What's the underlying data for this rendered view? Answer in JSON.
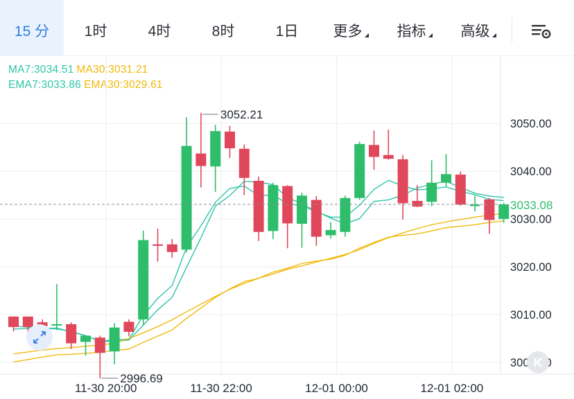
{
  "tabs": [
    {
      "label": "15 分",
      "active": true
    },
    {
      "label": "1时"
    },
    {
      "label": "4时"
    },
    {
      "label": "8时"
    },
    {
      "label": "1日"
    },
    {
      "label": "更多",
      "dropdown": true
    },
    {
      "label": "指标",
      "dropdown": true
    },
    {
      "label": "高级",
      "dropdown": true
    }
  ],
  "settings_icon": "chart-settings-icon",
  "indicators": {
    "ma7": {
      "label": "MA7:3034.51",
      "color": "#2ec4a8"
    },
    "ma30": {
      "label": "MA30:3031.21",
      "color": "#f0b90b"
    },
    "ema7": {
      "label": "EMA7:3033.86",
      "color": "#2ec4a8"
    },
    "ema30": {
      "label": "EMA30:3029.61",
      "color": "#f0b90b"
    }
  },
  "colors": {
    "up": "#2ebd6b",
    "down": "#e0475b",
    "grid": "#eceef1",
    "axis_text": "#222831"
  },
  "chart_data": {
    "type": "candlestick",
    "y_axis": {
      "min": 2993,
      "max": 3063,
      "ticks": [
        "3000.00",
        "3010.00",
        "3020.00",
        "3030.00",
        "3040.00",
        "3050.00"
      ]
    },
    "x_axis": {
      "ticks": [
        {
          "label": "11-30 20:00",
          "index": 6.5
        },
        {
          "label": "11-30 22:00",
          "index": 14.5
        },
        {
          "label": "12-01 00:00",
          "index": 22.5
        },
        {
          "label": "12-01 02:00",
          "index": 30.5
        }
      ]
    },
    "current_price": "3033.08",
    "high_label": "3052.21",
    "low_label": "2996.69",
    "candles": [
      {
        "o": 3009.6,
        "h": 3009.6,
        "c": 3007.4,
        "l": 3006.5
      },
      {
        "o": 3009.6,
        "h": 3009.6,
        "c": 3007.4,
        "l": 3006.5
      },
      {
        "o": 3008.4,
        "h": 3009.0,
        "c": 3007.6,
        "l": 3006.2
      },
      {
        "o": 3008.0,
        "h": 3016.4,
        "c": 3008.0,
        "l": 3006.8
      },
      {
        "o": 3008.0,
        "h": 3008.4,
        "c": 3004.0,
        "l": 3002.8
      },
      {
        "o": 3004.3,
        "h": 3005.5,
        "c": 3005.6,
        "l": 3001.4
      },
      {
        "o": 3005.2,
        "h": 3005.6,
        "c": 3002.0,
        "l": 2996.69
      },
      {
        "o": 3002.3,
        "h": 3008.2,
        "c": 3007.3,
        "l": 2999.6
      },
      {
        "o": 3008.5,
        "h": 3009.0,
        "c": 3006.4,
        "l": 3005.5
      },
      {
        "o": 3009.0,
        "h": 3027.6,
        "c": 3025.6,
        "l": 3007.8
      },
      {
        "o": 3024.7,
        "h": 3028.0,
        "c": 3024.4,
        "l": 3021.1
      },
      {
        "o": 3024.7,
        "h": 3025.8,
        "c": 3023.1,
        "l": 3021.9
      },
      {
        "o": 3023.6,
        "h": 3051.3,
        "c": 3045.3,
        "l": 3023.0
      },
      {
        "o": 3043.7,
        "h": 3052.21,
        "c": 3041.1,
        "l": 3036.6
      },
      {
        "o": 3041.0,
        "h": 3049.7,
        "c": 3048.4,
        "l": 3035.7
      },
      {
        "o": 3048.3,
        "h": 3049.5,
        "c": 3044.8,
        "l": 3042.8
      },
      {
        "o": 3044.7,
        "h": 3045.6,
        "c": 3038.6,
        "l": 3035.0
      },
      {
        "o": 3038.0,
        "h": 3038.9,
        "c": 3027.3,
        "l": 3025.4
      },
      {
        "o": 3027.5,
        "h": 3037.6,
        "c": 3037.1,
        "l": 3025.8
      },
      {
        "o": 3036.9,
        "h": 3037.1,
        "c": 3029.1,
        "l": 3023.9
      },
      {
        "o": 3029.0,
        "h": 3035.5,
        "c": 3034.9,
        "l": 3024.0
      },
      {
        "o": 3034.0,
        "h": 3034.8,
        "c": 3026.3,
        "l": 3024.4
      },
      {
        "o": 3026.6,
        "h": 3029.4,
        "c": 3027.7,
        "l": 3025.9
      },
      {
        "o": 3027.3,
        "h": 3034.9,
        "c": 3034.4,
        "l": 3026.3
      },
      {
        "o": 3034.4,
        "h": 3046.2,
        "c": 3045.7,
        "l": 3034.0
      },
      {
        "o": 3045.5,
        "h": 3048.5,
        "c": 3043.0,
        "l": 3040.3
      },
      {
        "o": 3043.4,
        "h": 3048.7,
        "c": 3042.6,
        "l": 3042.4
      },
      {
        "o": 3042.5,
        "h": 3043.4,
        "c": 3033.3,
        "l": 3029.9
      },
      {
        "o": 3033.8,
        "h": 3037.1,
        "c": 3032.6,
        "l": 3032.5
      },
      {
        "o": 3033.6,
        "h": 3042.3,
        "c": 3037.6,
        "l": 3032.7
      },
      {
        "o": 3037.6,
        "h": 3043.6,
        "c": 3039.4,
        "l": 3036.8
      },
      {
        "o": 3039.3,
        "h": 3039.9,
        "c": 3033.0,
        "l": 3032.8
      },
      {
        "o": 3033.0,
        "h": 3034.9,
        "c": 3033.0,
        "l": 3031.6
      },
      {
        "o": 3034.1,
        "h": 3034.4,
        "c": 3029.8,
        "l": 3026.9
      },
      {
        "o": 3030.0,
        "h": 3033.4,
        "c": 3033.08,
        "l": 3029.2
      }
    ],
    "series": [
      {
        "name": "MA7",
        "color": "#2ec4a8",
        "values": [
          3007.6,
          3007.4,
          3007.2,
          3007.0,
          3006.5,
          3005.6,
          3004.4,
          3004.4,
          3004.7,
          3007.8,
          3011.0,
          3013.6,
          3019.9,
          3026.1,
          3032.7,
          3034.9,
          3037.9,
          3037.7,
          3037.2,
          3034.5,
          3033.2,
          3031.6,
          3030.2,
          3029.0,
          3030.1,
          3033.7,
          3034.0,
          3035.0,
          3036.5,
          3037.3,
          3037.9,
          3036.6,
          3035.4,
          3034.8,
          3034.51
        ]
      },
      {
        "name": "EMA7",
        "color": "#2ec4a8",
        "values": [
          3007.0,
          3007.1,
          3007.1,
          3007.2,
          3006.4,
          3005.6,
          3004.5,
          3004.7,
          3004.9,
          3009.8,
          3013.4,
          3016.1,
          3024.1,
          3028.6,
          3033.5,
          3036.4,
          3036.9,
          3034.9,
          3035.0,
          3033.2,
          3032.8,
          3031.5,
          3030.4,
          3030.4,
          3032.9,
          3036.2,
          3038.1,
          3036.9,
          3036.1,
          3036.3,
          3036.7,
          3035.8,
          3035.1,
          3034.1,
          3033.86
        ]
      },
      {
        "name": "MA30",
        "color": "#f0b90b",
        "values": [
          3001.8,
          3002.2,
          3002.6,
          3002.9,
          3003.1,
          3003.4,
          3003.6,
          3004.0,
          3005.0,
          3006.2,
          3007.5,
          3008.9,
          3010.6,
          3012.2,
          3013.8,
          3015.3,
          3016.5,
          3017.6,
          3018.5,
          3019.5,
          3020.2,
          3021.0,
          3021.8,
          3022.6,
          3023.6,
          3024.9,
          3026.1,
          3027.1,
          3028.0,
          3028.8,
          3029.4,
          3029.9,
          3030.4,
          3030.8,
          3031.21
        ]
      },
      {
        "name": "EMA30",
        "color": "#f0b90b",
        "values": [
          3000.1,
          3000.6,
          3001.1,
          3001.6,
          3001.7,
          3001.9,
          3002.1,
          3002.5,
          3002.8,
          3004.2,
          3005.5,
          3006.8,
          3009.2,
          3011.4,
          3013.6,
          3015.4,
          3016.9,
          3017.6,
          3018.9,
          3019.7,
          3020.7,
          3021.2,
          3021.6,
          3022.4,
          3023.9,
          3025.1,
          3026.2,
          3026.6,
          3026.9,
          3027.5,
          3028.2,
          3028.5,
          3028.8,
          3029.3,
          3029.61
        ]
      }
    ]
  }
}
